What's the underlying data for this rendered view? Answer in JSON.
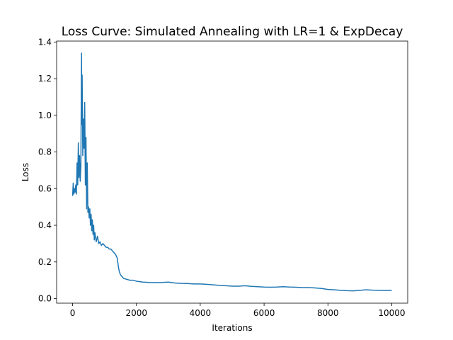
{
  "chart_data": {
    "type": "line",
    "title": "Loss Curve: Simulated Annealing with LR=1 & ExpDecay",
    "xlabel": "Iterations",
    "ylabel": "Loss",
    "xlim": [
      -500,
      10500
    ],
    "ylim": [
      -0.025,
      1.405
    ],
    "xticks": [
      0,
      2000,
      4000,
      6000,
      8000,
      10000
    ],
    "xtick_labels": [
      "0",
      "2000",
      "4000",
      "6000",
      "8000",
      "10000"
    ],
    "yticks": [
      0.0,
      0.2,
      0.4,
      0.6,
      0.8,
      1.0,
      1.2,
      1.4
    ],
    "ytick_labels": [
      "0.0",
      "0.2",
      "0.4",
      "0.6",
      "0.8",
      "1.0",
      "1.2",
      "1.4"
    ],
    "grid": false,
    "legend": "none",
    "series": [
      {
        "color": "#1f77b4",
        "x": [
          0,
          20,
          40,
          60,
          80,
          100,
          120,
          140,
          160,
          180,
          200,
          220,
          240,
          260,
          280,
          290,
          300,
          320,
          340,
          360,
          380,
          400,
          420,
          440,
          460,
          480,
          500,
          520,
          540,
          560,
          580,
          600,
          620,
          640,
          660,
          680,
          700,
          740,
          780,
          820,
          860,
          900,
          950,
          1000,
          1050,
          1100,
          1150,
          1200,
          1250,
          1300,
          1350,
          1400,
          1430,
          1460,
          1500,
          1550,
          1600,
          1700,
          1800,
          1900,
          2000,
          2200,
          2400,
          2600,
          2800,
          3000,
          3200,
          3400,
          3600,
          3800,
          4000,
          4200,
          4400,
          4600,
          4800,
          5000,
          5200,
          5400,
          5600,
          5800,
          6000,
          6200,
          6400,
          6600,
          6800,
          7000,
          7200,
          7400,
          7600,
          7800,
          8000,
          8200,
          8400,
          8600,
          8800,
          9000,
          9200,
          9400,
          9600,
          9800,
          10000
        ],
        "y": [
          0.56,
          0.63,
          0.57,
          0.6,
          0.58,
          0.62,
          0.57,
          0.74,
          0.62,
          0.85,
          0.66,
          0.78,
          0.64,
          0.72,
          1.34,
          0.95,
          1.22,
          0.78,
          0.98,
          0.82,
          1.07,
          0.62,
          0.88,
          0.49,
          0.74,
          0.47,
          0.5,
          0.44,
          0.49,
          0.4,
          0.46,
          0.37,
          0.43,
          0.35,
          0.4,
          0.32,
          0.36,
          0.31,
          0.34,
          0.3,
          0.31,
          0.29,
          0.3,
          0.29,
          0.28,
          0.28,
          0.27,
          0.27,
          0.26,
          0.25,
          0.24,
          0.22,
          0.18,
          0.15,
          0.13,
          0.12,
          0.11,
          0.105,
          0.1,
          0.1,
          0.095,
          0.09,
          0.088,
          0.087,
          0.088,
          0.09,
          0.085,
          0.083,
          0.082,
          0.08,
          0.08,
          0.078,
          0.075,
          0.072,
          0.07,
          0.068,
          0.068,
          0.07,
          0.067,
          0.065,
          0.063,
          0.062,
          0.063,
          0.065,
          0.063,
          0.062,
          0.06,
          0.06,
          0.058,
          0.055,
          0.05,
          0.048,
          0.045,
          0.043,
          0.042,
          0.045,
          0.048,
          0.046,
          0.045,
          0.044,
          0.045
        ]
      }
    ]
  }
}
